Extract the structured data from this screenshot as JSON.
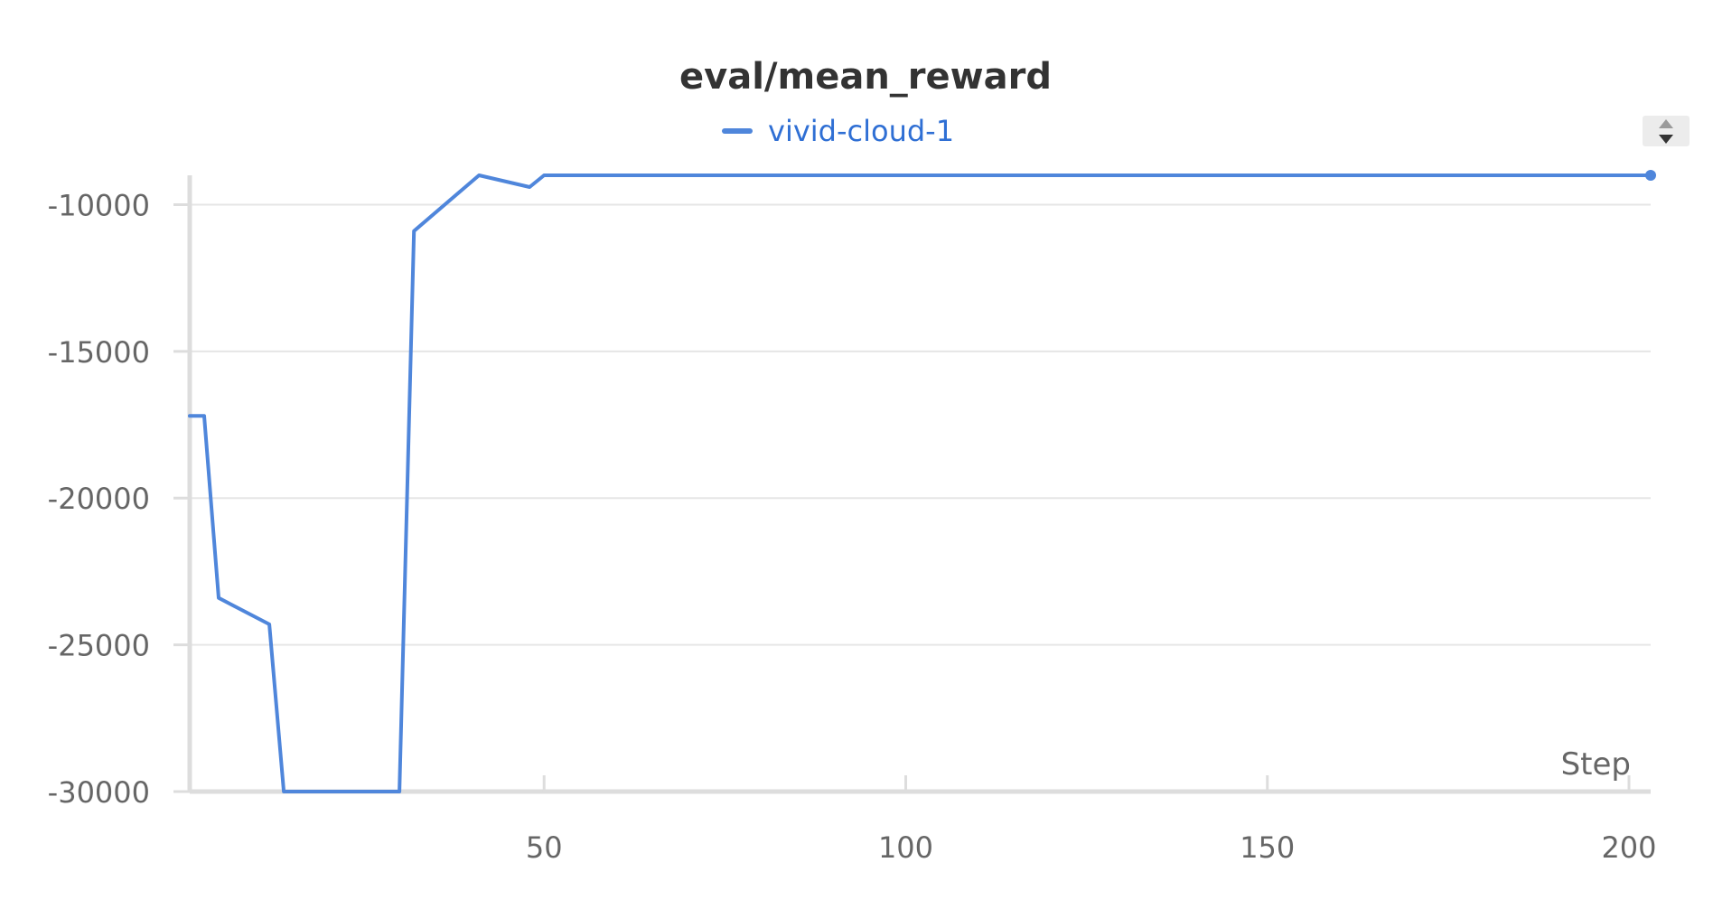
{
  "chart_data": {
    "type": "line",
    "title": "eval/mean_reward",
    "xlabel": "Step",
    "ylabel": "",
    "xlim": [
      1,
      203
    ],
    "ylim": [
      -30000,
      -9000
    ],
    "xticks": [
      50,
      100,
      150,
      200
    ],
    "yticks": [
      -30000,
      -25000,
      -20000,
      -15000,
      -10000
    ],
    "grid": true,
    "legend": "top-center",
    "series": [
      {
        "name": "vivid-cloud-1",
        "color": "#4f86db",
        "x": [
          1,
          3,
          5,
          12,
          14,
          30,
          32,
          41,
          48,
          50,
          100,
          150,
          203
        ],
        "y": [
          -17200,
          -17200,
          -23400,
          -24300,
          -30000,
          -30000,
          -10900,
          -9000,
          -9400,
          -9000,
          -9000,
          -9000,
          -9000
        ]
      }
    ]
  },
  "controls": {
    "sort_icon": "sort-updown-icon"
  }
}
